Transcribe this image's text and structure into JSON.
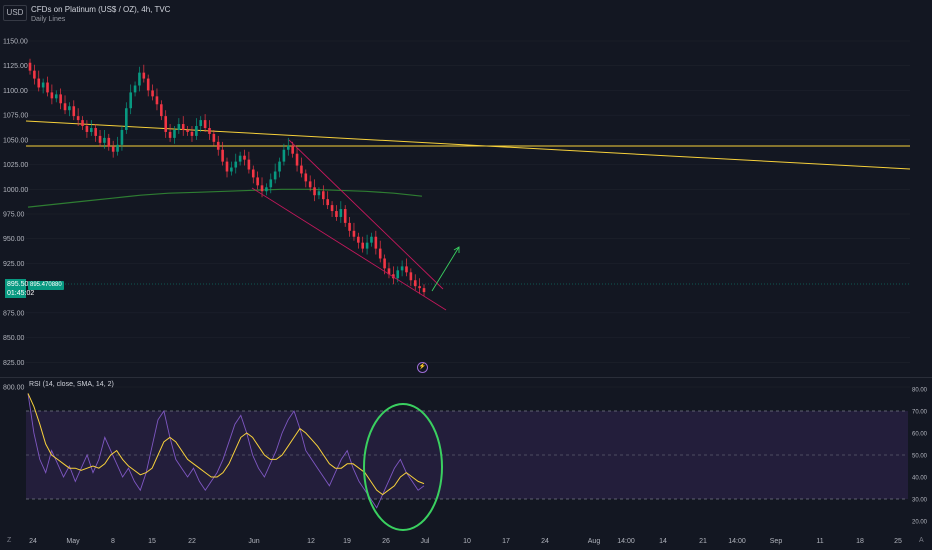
{
  "header": {
    "currency": "USD",
    "title": "CFDs on Platinum (US$ / OZ), 4h, TVC",
    "subtitle": "Daily Lines"
  },
  "price_badge": {
    "price": "895.50",
    "countdown": "01:45:02",
    "pill": "895.470880"
  },
  "price_axis": [
    "1150.00",
    "1125.00",
    "1100.00",
    "1075.00",
    "1050.00",
    "1025.00",
    "1000.00",
    "975.00",
    "950.00",
    "925.00",
    "875.00",
    "850.00",
    "825.00",
    "800.00"
  ],
  "rsi": {
    "label": "RSI (14, close, SMA, 14, 2)",
    "axis": [
      "80.00",
      "70.00",
      "60.00",
      "50.00",
      "40.00",
      "30.00",
      "20.00"
    ]
  },
  "time_axis": [
    "24",
    "May",
    "8",
    "15",
    "22",
    "Jun",
    "12",
    "19",
    "26",
    "Jul",
    "10",
    "17",
    "24",
    "Aug",
    "14:00",
    "14",
    "21",
    "14:00",
    "Sep",
    "11",
    "18",
    "25"
  ],
  "go_to_realtime": "⚡",
  "corner": {
    "left": "Z",
    "right": "A"
  },
  "colors": {
    "up": "#089981",
    "down": "#f23645",
    "yellow": "#f7d13b",
    "green_ma": "#2e7d32",
    "rsi_line": "#7e57c2",
    "rsi_ma": "#f7d13b",
    "rsi_band": "#2a2244",
    "circle": "#3ad060",
    "wedge": "#c2185b"
  },
  "chart_data": {
    "type": "candlestick",
    "candles_close": [
      1120,
      1112,
      1103,
      1108,
      1098,
      1092,
      1096,
      1087,
      1080,
      1084,
      1074,
      1070,
      1064,
      1058,
      1062,
      1054,
      1047,
      1052,
      1043,
      1038,
      1045,
      1060,
      1082,
      1098,
      1105,
      1118,
      1112,
      1100,
      1094,
      1086,
      1074,
      1058,
      1052,
      1060,
      1066,
      1060,
      1058,
      1054,
      1064,
      1070,
      1062,
      1056,
      1048,
      1040,
      1028,
      1018,
      1022,
      1028,
      1034,
      1030,
      1020,
      1012,
      1004,
      998,
      1002,
      1010,
      1018,
      1028,
      1040,
      1044,
      1036,
      1024,
      1016,
      1008,
      1002,
      994,
      998,
      990,
      984,
      978,
      972,
      980,
      966,
      958,
      952,
      946,
      940,
      946,
      952,
      940,
      930,
      920,
      914,
      910,
      918,
      922,
      916,
      908,
      902,
      900,
      896
    ],
    "green_ma": [
      982,
      985,
      988,
      991,
      994,
      996,
      997,
      998,
      999,
      1000,
      1000,
      999,
      998,
      996,
      993
    ],
    "rsi_values": [
      78,
      60,
      48,
      42,
      52,
      46,
      40,
      45,
      38,
      44,
      50,
      42,
      48,
      58,
      52,
      46,
      40,
      44,
      38,
      34,
      42,
      54,
      66,
      70,
      58,
      48,
      44,
      40,
      44,
      38,
      34,
      38,
      42,
      48,
      56,
      64,
      68,
      60,
      50,
      44,
      40,
      46,
      52,
      60,
      66,
      70,
      62,
      52,
      48,
      44,
      40,
      36,
      42,
      48,
      52,
      44,
      38,
      34,
      30,
      26,
      32,
      38,
      44,
      48,
      42,
      38,
      34,
      36
    ],
    "rsi_ma": [
      78,
      72,
      64,
      55,
      50,
      48,
      46,
      44,
      44,
      43,
      44,
      45,
      44,
      46,
      50,
      52,
      48,
      45,
      43,
      41,
      42,
      44,
      50,
      56,
      58,
      56,
      52,
      48,
      46,
      44,
      42,
      40,
      40,
      42,
      46,
      52,
      58,
      60,
      58,
      54,
      50,
      48,
      48,
      50,
      54,
      58,
      62,
      60,
      57,
      54,
      50,
      46,
      44,
      44,
      46,
      46,
      44,
      42,
      38,
      34,
      32,
      34,
      36,
      40,
      42,
      40,
      38,
      37
    ]
  }
}
